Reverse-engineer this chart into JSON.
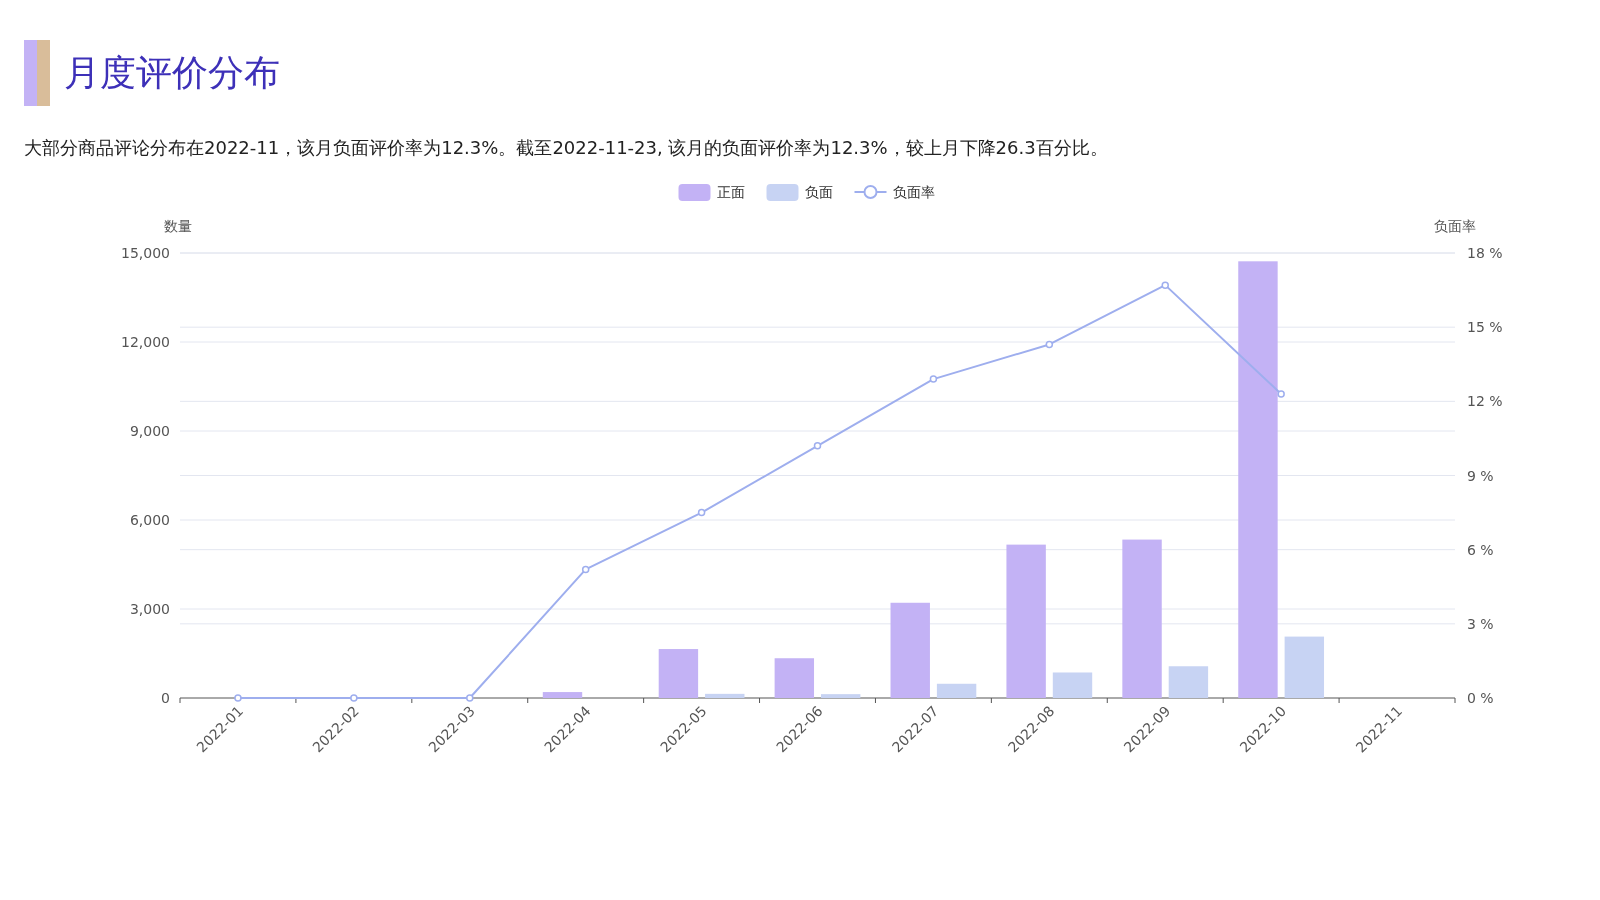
{
  "chart_data": {
    "type": "bar",
    "title": "月度评价分布",
    "subtitle": "大部分商品评论分布在2022-11，该月负面评价率为12.3%。截至2022-11-23, 该月的负面评价率为12.3%，较上月下降26.3百分比。",
    "ylabel": "数量",
    "y2label": "负面率",
    "categories": [
      "2022-01",
      "2022-02",
      "2022-03",
      "2022-04",
      "2022-05",
      "2022-06",
      "2022-07",
      "2022-08",
      "2022-09",
      "2022-10",
      "2022-11"
    ],
    "series": [
      {
        "name": "正面",
        "color": "#c3b2f5",
        "values": [
          0,
          0,
          0,
          200,
          1650,
          1340,
          3210,
          5170,
          5340,
          14720,
          0
        ]
      },
      {
        "name": "负面",
        "color": "#c7d3f3",
        "values": [
          0,
          0,
          0,
          0,
          140,
          130,
          480,
          860,
          1070,
          2070,
          0
        ]
      },
      {
        "name": "负面率",
        "type": "line",
        "axis": "y2",
        "color": "#9eaeee",
        "marker": "circle",
        "values": [
          0,
          0,
          0,
          5.2,
          7.5,
          10.2,
          12.9,
          14.3,
          16.7,
          12.3,
          null
        ]
      }
    ],
    "ylim": [
      0,
      15000
    ],
    "yticks": [
      {
        "value": 0,
        "label": "0"
      },
      {
        "value": 3000,
        "label": "3,000"
      },
      {
        "value": 6000,
        "label": "6,000"
      },
      {
        "value": 9000,
        "label": "9,000"
      },
      {
        "value": 12000,
        "label": "12,000"
      },
      {
        "value": 15000,
        "label": "15,000"
      }
    ],
    "y2lim": [
      0,
      18
    ],
    "y2ticks": [
      {
        "value": 0,
        "label": "0 %"
      },
      {
        "value": 3,
        "label": "3 %"
      },
      {
        "value": 6,
        "label": "6 %"
      },
      {
        "value": 9,
        "label": "9 %"
      },
      {
        "value": 12,
        "label": "12 %"
      },
      {
        "value": 15,
        "label": "15 %"
      },
      {
        "value": 18,
        "label": "18 %"
      }
    ],
    "grid": true,
    "legend": "top"
  }
}
